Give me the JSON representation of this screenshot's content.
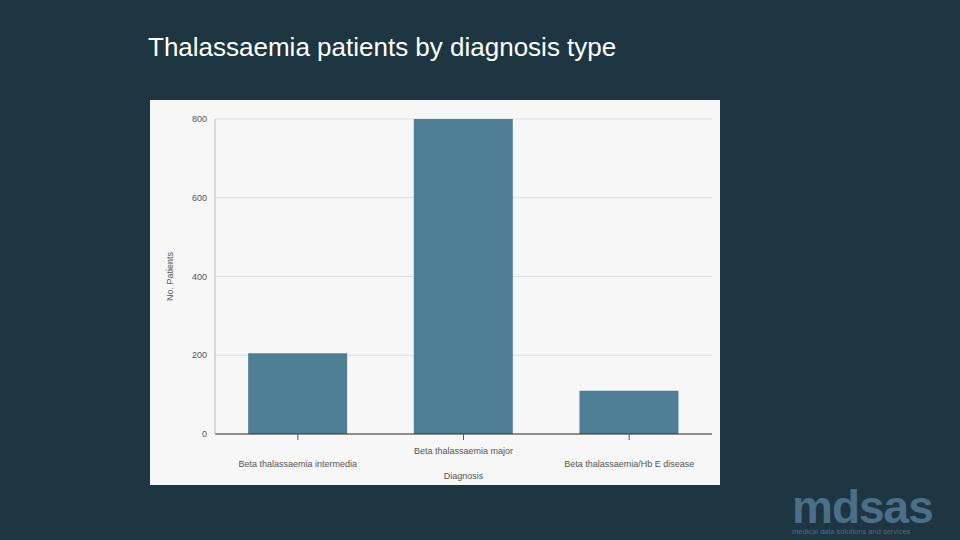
{
  "chart_data": {
    "type": "bar",
    "title": "Thalassaemia patients by diagnosis type",
    "x_label": "Diagnosis",
    "y_label": "No. Patients",
    "categories": [
      "Beta thalassaemia intermedia",
      "Beta thalassaemia major",
      "Beta thalassaemia/Hb E disease"
    ],
    "values": [
      205,
      800,
      110
    ],
    "color": "#4e7f95",
    "ylim": [
      0,
      800
    ],
    "yticks": [
      0,
      200,
      400,
      600,
      800
    ],
    "grid": true
  },
  "logo": {
    "name": "mdsas",
    "tagline": "medical data solutions and services"
  }
}
